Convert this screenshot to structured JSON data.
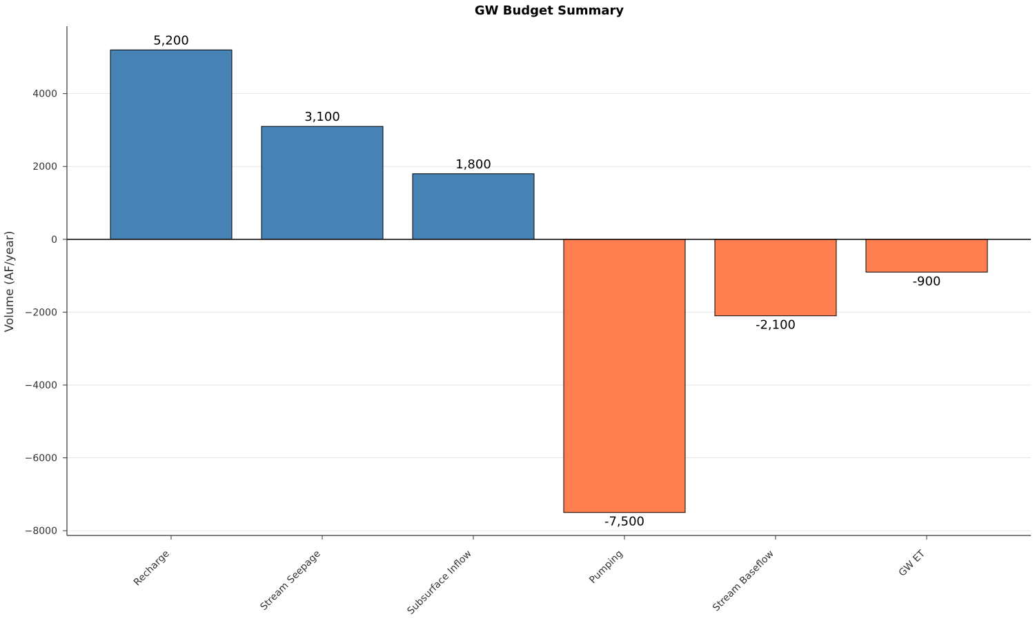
{
  "chart_data": {
    "type": "bar",
    "title": "GW Budget Summary",
    "xlabel": "",
    "ylabel": "Volume (AF/year)",
    "categories": [
      "Recharge",
      "Stream Seepage",
      "Subsurface Inflow",
      "Pumping",
      "Stream Baseflow",
      "GW ET"
    ],
    "values": [
      5200,
      3100,
      1800,
      -7500,
      -2100,
      -900
    ],
    "data_labels": [
      "5,200",
      "3,100",
      "1,800",
      "-7,500",
      "-2,100",
      "-900"
    ],
    "ylim": [
      -8130,
      5850
    ],
    "yticks": [
      4000,
      2000,
      0,
      -2000,
      -4000,
      -6000,
      -8000
    ],
    "ytick_labels": [
      "4000",
      "2000",
      "0",
      "−2000",
      "−4000",
      "−6000",
      "−8000"
    ],
    "grid": true,
    "colors": {
      "positive": "#4682b4",
      "negative": "#ff7f50",
      "edge": "#000000",
      "grid": "#e6e6e6",
      "axis": "#333333"
    }
  }
}
